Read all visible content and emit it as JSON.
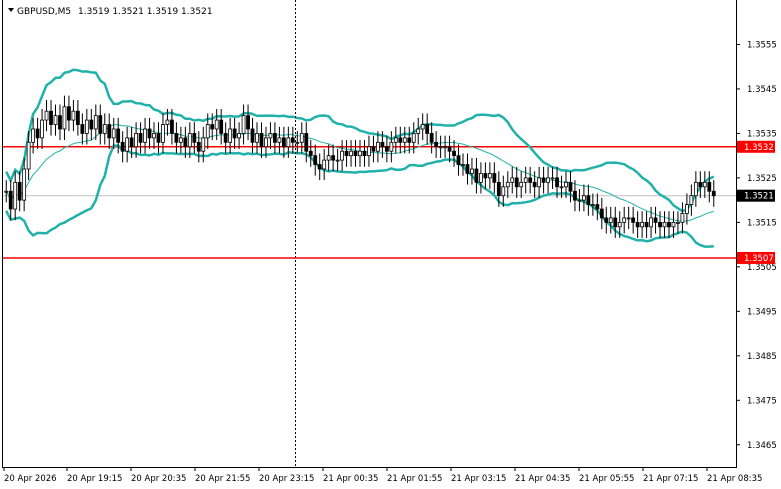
{
  "header": {
    "symbol": "GBPUSD,M5",
    "ohlc": "1.3519 1.3521 1.3519 1.3521"
  },
  "chart_data": {
    "type": "candlestick",
    "symbol": "GBPUSD",
    "timeframe": "M5",
    "ylim": [
      1.346,
      1.3565
    ],
    "y_ticks": [
      "1.3555",
      "1.3545",
      "1.3535",
      "1.3525",
      "1.3515",
      "1.3505",
      "1.3495",
      "1.3485",
      "1.3475",
      "1.3465"
    ],
    "x_ticks": [
      "20 Apr 2026",
      "20 Apr 19:15",
      "20 Apr 20:35",
      "20 Apr 21:55",
      "20 Apr 23:15",
      "21 Apr 00:35",
      "21 Apr 01:55",
      "21 Apr 03:15",
      "21 Apr 04:35",
      "21 Apr 05:55",
      "21 Apr 07:15",
      "21 Apr 08:35"
    ],
    "bar_count": 144,
    "current_price": "1.3521",
    "horizontal_levels": [
      {
        "value": 1.3532,
        "label": "1.3532",
        "color": "#ff0000"
      },
      {
        "value": 1.3507,
        "label": "1.3507",
        "color": "#ff0000"
      }
    ],
    "grid": false,
    "colors": {
      "candle": "#000000",
      "band": "#20b2aa",
      "level": "#ff0000",
      "current_line": "#c0c0c0",
      "tag_current": "#000000"
    },
    "closes": [
      1.3522,
      1.3518,
      1.3524,
      1.352,
      1.3527,
      1.3533,
      1.3536,
      1.3534,
      1.3538,
      1.354,
      1.3537,
      1.3539,
      1.3536,
      1.3541,
      1.3538,
      1.354,
      1.3537,
      1.3535,
      1.3538,
      1.3536,
      1.3539,
      1.3535,
      1.3537,
      1.3534,
      1.3536,
      1.3533,
      1.3531,
      1.3534,
      1.3532,
      1.3535,
      1.3533,
      1.3536,
      1.3534,
      1.3535,
      1.3533,
      1.3537,
      1.3538,
      1.3535,
      1.3533,
      1.3534,
      1.3532,
      1.3535,
      1.3533,
      1.3531,
      1.3534,
      1.3537,
      1.3536,
      1.3538,
      1.3535,
      1.3533,
      1.3536,
      1.3534,
      1.3535,
      1.3539,
      1.3536,
      1.3533,
      1.3535,
      1.3532,
      1.3534,
      1.3535,
      1.3533,
      1.3534,
      1.3532,
      1.3534,
      1.3533,
      1.3533,
      1.3535,
      1.3531,
      1.353,
      1.3528,
      1.3527,
      1.3529,
      1.353,
      1.3529,
      1.3529,
      1.3531,
      1.353,
      1.3531,
      1.353,
      1.3531,
      1.353,
      1.3532,
      1.3531,
      1.3533,
      1.3532,
      1.3531,
      1.3533,
      1.3534,
      1.3533,
      1.3534,
      1.3533,
      1.3535,
      1.3536,
      1.3537,
      1.3535,
      1.3533,
      1.3532,
      1.3532,
      1.3532,
      1.3531,
      1.353,
      1.3528,
      1.3528,
      1.3526,
      1.3527,
      1.3524,
      1.3526,
      1.3525,
      1.3526,
      1.3524,
      1.3521,
      1.3523,
      1.3524,
      1.3525,
      1.3523,
      1.3524,
      1.3525,
      1.3524,
      1.3523,
      1.3525,
      1.3524,
      1.3525,
      1.3525,
      1.3523,
      1.3523,
      1.3524,
      1.3522,
      1.352,
      1.352,
      1.3521,
      1.3519,
      1.3519,
      1.3518,
      1.3516,
      1.3515,
      1.3516,
      1.3514,
      1.3515,
      1.3516,
      1.3516,
      1.3515,
      1.3514,
      1.3515,
      1.3514
    ],
    "tail_closes": [
      1.3516,
      1.3515,
      1.3514,
      1.3515,
      1.3514,
      1.3515,
      1.3515,
      1.3517,
      1.3519,
      1.3521,
      1.3524,
      1.3523,
      1.3524,
      1.3522,
      1.3521
    ]
  }
}
